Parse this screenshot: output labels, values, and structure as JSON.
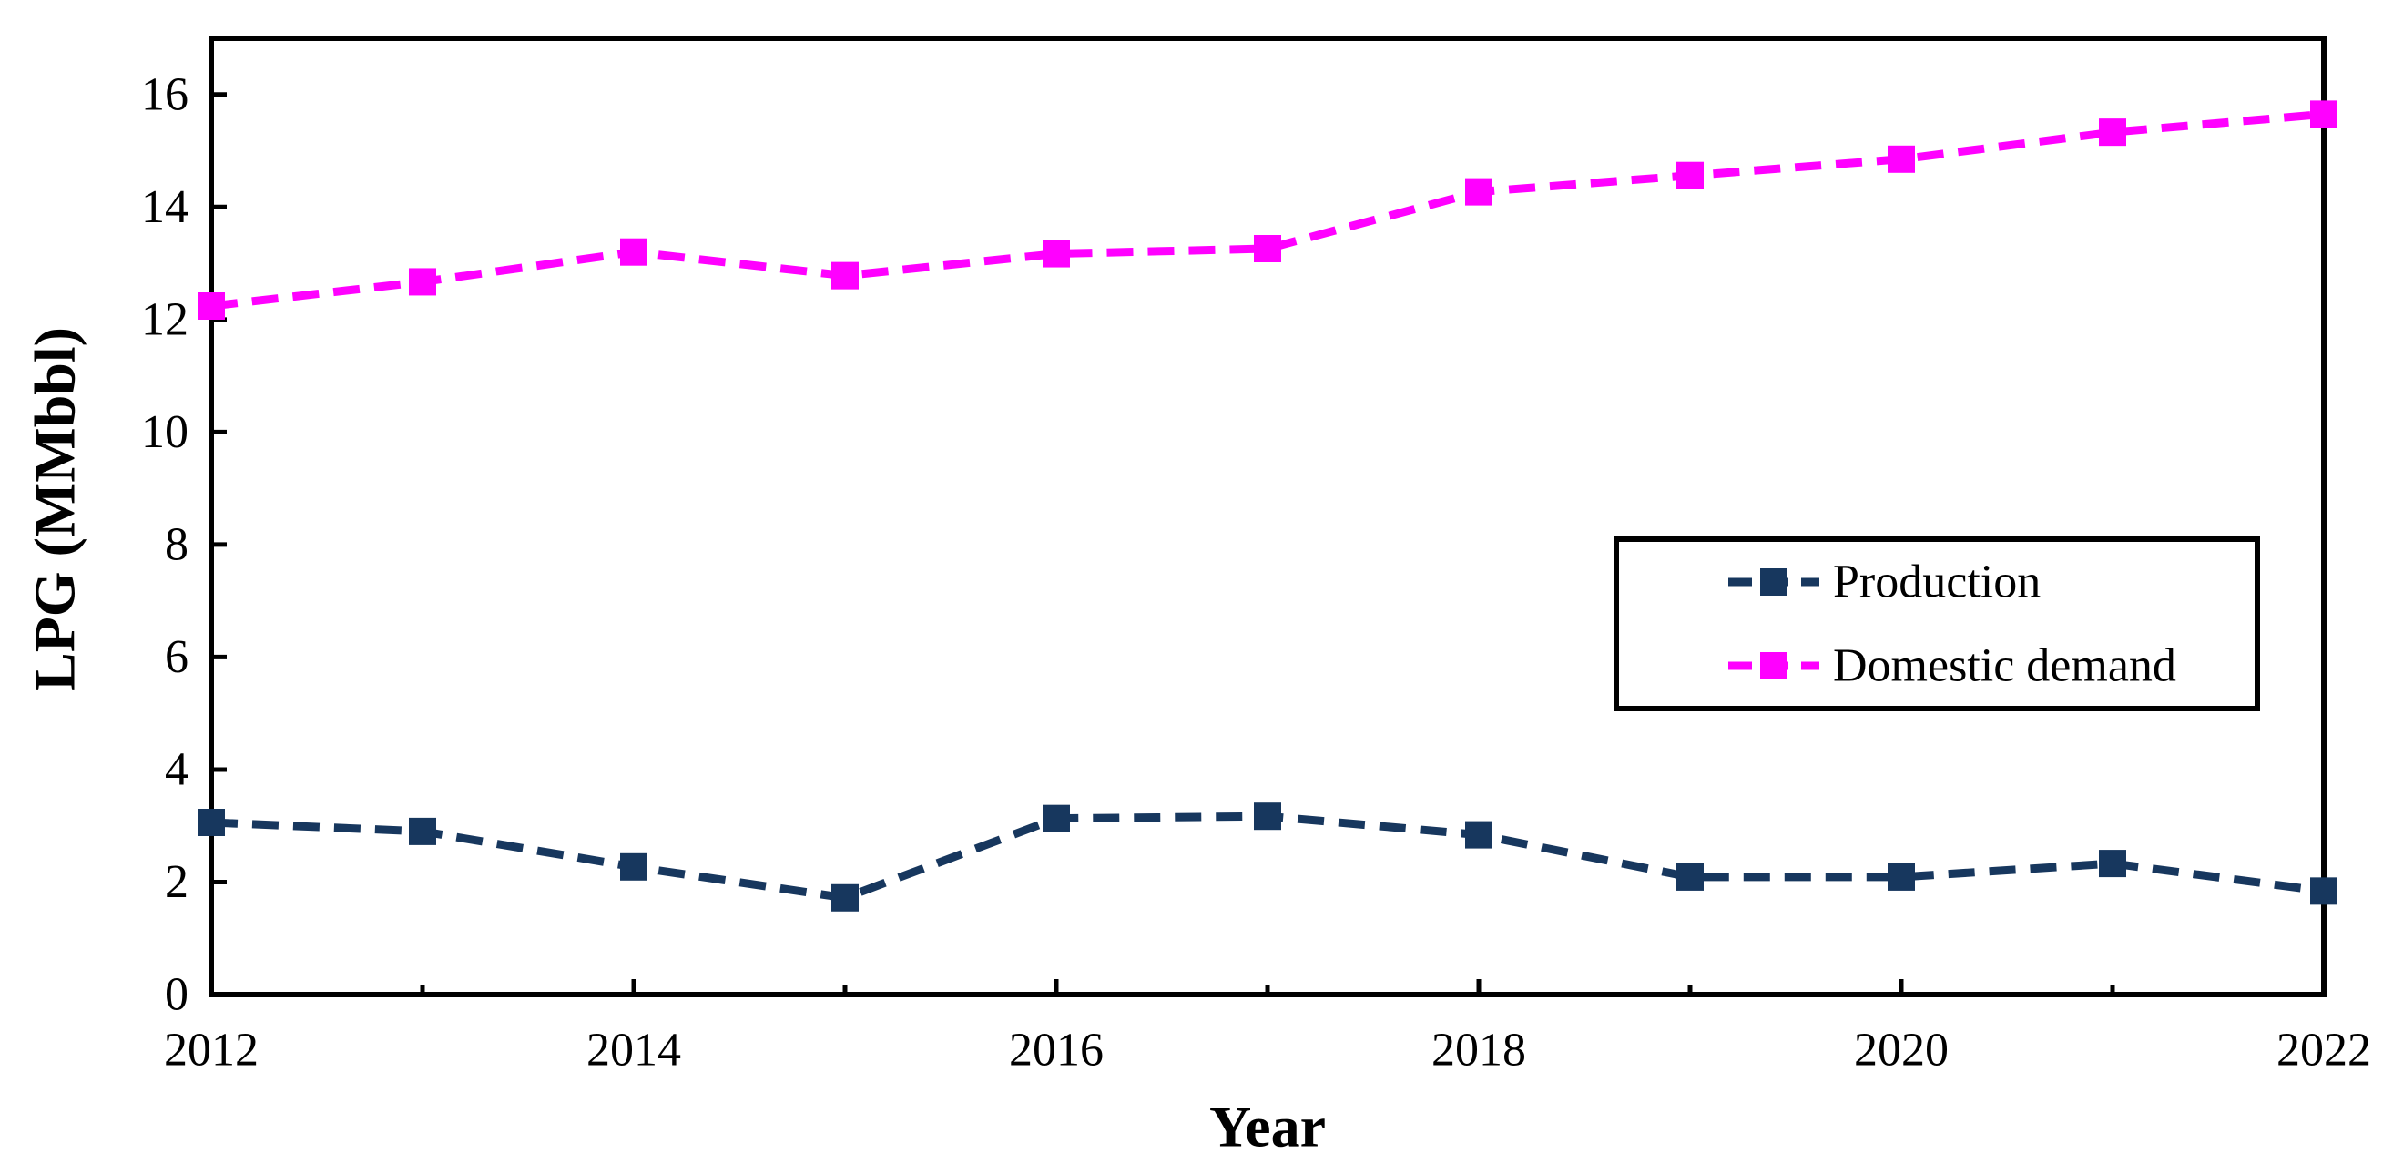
{
  "figure": {
    "background": "#FFFFFF"
  },
  "chart_data": {
    "type": "line",
    "title": "",
    "xlabel": "Year",
    "ylabel": "LPG (MMbbl)",
    "x": [
      2012,
      2013,
      2014,
      2015,
      2016,
      2017,
      2018,
      2019,
      2020,
      2021,
      2022
    ],
    "xlim": [
      2012,
      2022
    ],
    "ylim": [
      0,
      17
    ],
    "yticks": [
      0,
      2,
      4,
      6,
      8,
      10,
      12,
      14,
      16
    ],
    "xtick_label_years": [
      2012,
      2014,
      2016,
      2018,
      2020,
      2022
    ],
    "grid": false,
    "plot_frame": true,
    "axis_color": "#000000",
    "tick_label_color": "#000000",
    "legend": {
      "position": "inside-right",
      "background": "#FFFFFF",
      "border_color": "#000000"
    },
    "series": [
      {
        "name": "Production",
        "color": "#17375E",
        "line_style": "dashed",
        "marker": "square",
        "values": [
          3.06,
          2.9,
          2.27,
          1.72,
          3.13,
          3.17,
          2.84,
          2.09,
          2.09,
          2.33,
          1.84
        ]
      },
      {
        "name": "Domestic demand",
        "color": "#FF00FF",
        "line_style": "dashed",
        "marker": "square",
        "values": [
          12.24,
          12.67,
          13.2,
          12.78,
          13.17,
          13.26,
          14.27,
          14.56,
          14.85,
          15.33,
          15.65
        ]
      }
    ]
  }
}
